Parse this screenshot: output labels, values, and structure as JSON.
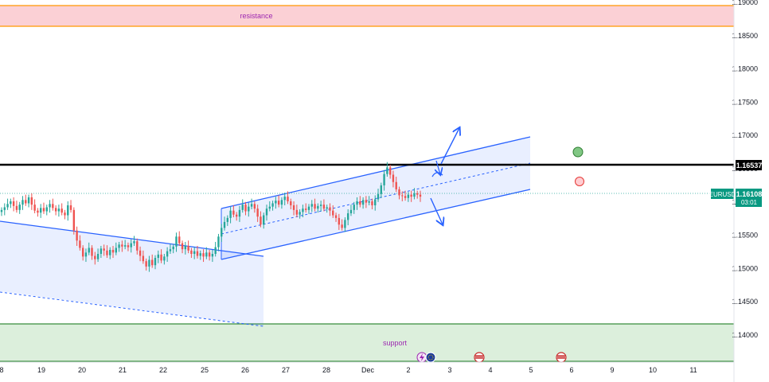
{
  "chart_data": {
    "type": "candlestick",
    "symbol": "EURUSD",
    "price_label": "1.16108",
    "countdown": "03:01",
    "level_label": "1.16537",
    "resistance_label": "resistance",
    "support_label": "support",
    "x_ticks": [
      "8",
      "19",
      "20",
      "21",
      "22",
      "25",
      "26",
      "27",
      "28",
      "Dec",
      "2",
      "3",
      "4",
      "5",
      "6",
      "9",
      "10",
      "11"
    ],
    "y_ticks": [
      1.19,
      1.185,
      1.18,
      1.175,
      1.17,
      1.165,
      1.16,
      1.155,
      1.15,
      1.145,
      1.14
    ],
    "y_tick_labels": [
      "1.19000",
      "1.18500",
      "1.18000",
      "1.17500",
      "1.17000",
      "1.16500",
      "1.16000",
      "1.15500",
      "1.15000",
      "1.14500",
      "1.14000"
    ],
    "ylim": [
      1.1355,
      1.1905
    ],
    "resistance_zone": [
      1.1863,
      1.1892
    ],
    "support_zone": [
      1.1358,
      1.1415
    ],
    "horizontal_level": 1.16537,
    "current_price": 1.16108,
    "closes": [
      1.1588,
      1.1592,
      1.1597,
      1.1601,
      1.1594,
      1.1588,
      1.1596,
      1.1603,
      1.1598,
      1.1607,
      1.1596,
      1.1587,
      1.1584,
      1.1591,
      1.1586,
      1.1592,
      1.1597,
      1.1591,
      1.1586,
      1.159,
      1.1584,
      1.158,
      1.1595,
      1.1588,
      1.1557,
      1.1542,
      1.1531,
      1.1518,
      1.1524,
      1.1531,
      1.1519,
      1.1514,
      1.1522,
      1.153,
      1.1527,
      1.152,
      1.1528,
      1.1524,
      1.1531,
      1.1536,
      1.1533,
      1.1535,
      1.1532,
      1.1538,
      1.1541,
      1.1527,
      1.1519,
      1.1511,
      1.1503,
      1.1513,
      1.1505,
      1.1516,
      1.1521,
      1.1512,
      1.1518,
      1.1526,
      1.1529,
      1.1533,
      1.1548,
      1.1538,
      1.1529,
      1.1534,
      1.1527,
      1.1522,
      1.1526,
      1.1519,
      1.1523,
      1.1518,
      1.1524,
      1.1518,
      1.1522,
      1.1532,
      1.1548,
      1.1561,
      1.157,
      1.1576,
      1.1587,
      1.1581,
      1.1578,
      1.1588,
      1.1596,
      1.1586,
      1.1593,
      1.1597,
      1.159,
      1.1578,
      1.1566,
      1.158,
      1.159,
      1.1593,
      1.1598,
      1.1602,
      1.1596,
      1.1603,
      1.1608,
      1.1601,
      1.1595,
      1.1588,
      1.1581,
      1.1585,
      1.159,
      1.1588,
      1.1593,
      1.1597,
      1.159,
      1.1594,
      1.1596,
      1.159,
      1.1592,
      1.1587,
      1.158,
      1.1576,
      1.1566,
      1.1561,
      1.1573,
      1.1583,
      1.1588,
      1.1596,
      1.1601,
      1.1596,
      1.1603,
      1.1599,
      1.1601,
      1.1595,
      1.1604,
      1.1612,
      1.1625,
      1.1642,
      1.1652,
      1.1641,
      1.163,
      1.1619,
      1.161,
      1.1609,
      1.1606,
      1.1611,
      1.1608,
      1.1613,
      1.1611,
      1.1608
    ]
  },
  "price_badge": {
    "symbol": "EURUSD",
    "price": "1.16108",
    "timer": "03:01"
  },
  "level_badge": {
    "price": "1.16537"
  },
  "colors": {
    "up": "#26a69a",
    "down": "#ef5350",
    "channel": "#2962ff",
    "level": "#000000",
    "resistance_fill": "#ffcdd2",
    "resistance_line": "#ff9800",
    "support_fill": "#c8e6c9",
    "support_line": "#388e3c",
    "badge": "#089981",
    "zone_text": "#9c27b0"
  }
}
